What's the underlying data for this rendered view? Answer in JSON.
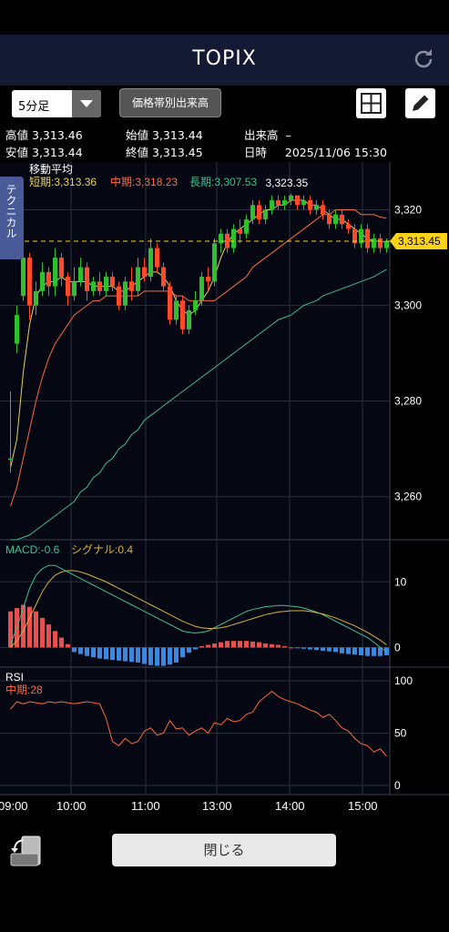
{
  "header": {
    "title": "TOPIX"
  },
  "toolbar": {
    "period": "5分足",
    "price_volume_button": "価格帯別出来高"
  },
  "quote": {
    "high_label": "高値",
    "high_value": "3,313.46",
    "open_label": "始値",
    "open_value": "3,313.44",
    "volume_label": "出来高",
    "volume_value": "–",
    "low_label": "安値",
    "low_value": "3,313.44",
    "close_label": "終値",
    "close_value": "3,313.45",
    "datetime_label": "日時",
    "datetime_value": "2025/11/06 15:30"
  },
  "side_tab": {
    "label": "テクニカル"
  },
  "bottom": {
    "close_button": "閉じる"
  },
  "colors": {
    "up": "#2fbf2f",
    "down": "#ff4a2a",
    "short_ma": "#e8d25a",
    "mid_ma": "#ff6a40",
    "long_ma": "#3fbf90",
    "current_price_bg": "#ffd21a",
    "macd_hist_pos": "#e85050",
    "macd_hist_neg": "#3a88e0"
  },
  "chart_data": [
    {
      "type": "line",
      "title": "移動平均",
      "ma_labels": {
        "short": "短期:3,313.36",
        "mid": "中期:3,318.23",
        "long": "長期:3,307.53"
      },
      "y_ticks": [
        "3,320",
        "3,300",
        "3,280",
        "3,260"
      ],
      "y_tick_values": [
        3320,
        3300,
        3280,
        3260
      ],
      "ylim": [
        3251,
        3330
      ],
      "x_ticks": [
        "09:00",
        "10:00",
        "11:00",
        "13:00",
        "14:00",
        "15:00"
      ],
      "current_price": "3,313.45",
      "current_price_value": 3313.45,
      "peak_label": "3,323.35",
      "peak_value": 3323.35,
      "candles": [
        [
          3268,
          3268,
          3282,
          3265
        ],
        [
          3292,
          3298,
          3300,
          3290
        ],
        [
          3302,
          3310,
          3311,
          3301
        ],
        [
          3310,
          3300,
          3311,
          3297
        ],
        [
          3300,
          3303,
          3305,
          3298
        ],
        [
          3303,
          3307,
          3309,
          3302
        ],
        [
          3307,
          3304,
          3308,
          3302
        ],
        [
          3304,
          3310,
          3312,
          3302
        ],
        [
          3310,
          3306,
          3311,
          3304
        ],
        [
          3306,
          3302,
          3307,
          3300
        ],
        [
          3302,
          3305,
          3308,
          3301
        ],
        [
          3305,
          3308,
          3310,
          3304
        ],
        [
          3308,
          3303,
          3309,
          3301
        ],
        [
          3303,
          3305,
          3306,
          3302
        ],
        [
          3305,
          3303,
          3307,
          3302
        ],
        [
          3303,
          3306,
          3307,
          3302
        ],
        [
          3306,
          3304,
          3307,
          3303
        ],
        [
          3304,
          3300,
          3305,
          3299
        ],
        [
          3300,
          3305,
          3306,
          3299
        ],
        [
          3305,
          3303,
          3308,
          3301
        ],
        [
          3303,
          3308,
          3310,
          3302
        ],
        [
          3308,
          3306,
          3310,
          3305
        ],
        [
          3306,
          3312,
          3314,
          3305
        ],
        [
          3312,
          3308,
          3313,
          3307
        ],
        [
          3308,
          3304,
          3309,
          3303
        ],
        [
          3304,
          3297,
          3305,
          3296
        ],
        [
          3297,
          3301,
          3302,
          3296
        ],
        [
          3301,
          3295,
          3302,
          3294
        ],
        [
          3295,
          3299,
          3300,
          3294
        ],
        [
          3299,
          3301,
          3303,
          3298
        ],
        [
          3301,
          3306,
          3307,
          3300
        ],
        [
          3306,
          3305,
          3308,
          3303
        ],
        [
          3305,
          3313,
          3314,
          3304
        ],
        [
          3313,
          3315,
          3316,
          3311
        ],
        [
          3315,
          3312,
          3316,
          3311
        ],
        [
          3312,
          3316,
          3317,
          3311
        ],
        [
          3316,
          3315,
          3318,
          3313
        ],
        [
          3315,
          3318,
          3319,
          3314
        ],
        [
          3318,
          3321,
          3322,
          3317
        ],
        [
          3321,
          3318,
          3322,
          3317
        ],
        [
          3318,
          3320,
          3321,
          3317
        ],
        [
          3320,
          3322,
          3323,
          3319
        ],
        [
          3322,
          3321,
          3323,
          3320
        ],
        [
          3321,
          3322,
          3323,
          3320
        ],
        [
          3322,
          3323,
          3323.35,
          3321
        ],
        [
          3323,
          3321,
          3323,
          3320
        ],
        [
          3321,
          3322,
          3323,
          3320
        ],
        [
          3322,
          3320,
          3323,
          3319
        ],
        [
          3320,
          3321,
          3322,
          3319
        ],
        [
          3321,
          3319,
          3322,
          3318
        ],
        [
          3319,
          3317,
          3320,
          3316
        ],
        [
          3317,
          3319,
          3320,
          3316
        ],
        [
          3319,
          3317,
          3320,
          3316
        ],
        [
          3317,
          3316,
          3318,
          3315
        ],
        [
          3316,
          3313,
          3317,
          3312
        ],
        [
          3313,
          3316,
          3317,
          3312
        ],
        [
          3316,
          3312,
          3317,
          3311
        ],
        [
          3312,
          3314,
          3315,
          3311
        ],
        [
          3314,
          3312,
          3315,
          3311
        ],
        [
          3312,
          3313.45,
          3314,
          3311
        ]
      ],
      "short_ma": [
        3266,
        3272,
        3286,
        3296,
        3302,
        3304,
        3305,
        3305,
        3306,
        3305,
        3305,
        3305,
        3305,
        3304,
        3304,
        3304,
        3304,
        3303,
        3303,
        3304,
        3305,
        3306,
        3307,
        3307,
        3306,
        3304,
        3301,
        3299,
        3298,
        3299,
        3301,
        3303,
        3306,
        3310,
        3313,
        3315,
        3316,
        3317,
        3318,
        3319,
        3320,
        3320,
        3321,
        3321,
        3322,
        3322,
        3322,
        3321,
        3321,
        3320,
        3319,
        3318,
        3318,
        3317,
        3316,
        3315,
        3314,
        3313.5,
        3313.4,
        3313.36
      ],
      "mid_ma": [
        3258,
        3262,
        3268,
        3274,
        3280,
        3285,
        3289,
        3292,
        3294,
        3296,
        3298,
        3299,
        3300,
        3301,
        3301,
        3302,
        3302,
        3302,
        3302,
        3302,
        3302,
        3303,
        3303,
        3303,
        3303,
        3303,
        3302,
        3302,
        3301,
        3301,
        3301,
        3301,
        3301,
        3302,
        3303,
        3304,
        3305,
        3306,
        3308,
        3309,
        3310,
        3311,
        3312,
        3313,
        3314,
        3315,
        3316,
        3317,
        3318,
        3319,
        3319,
        3320,
        3320,
        3320,
        3320,
        3319,
        3319,
        3319,
        3318.5,
        3318.23
      ],
      "long_ma": [
        3251,
        3251,
        3251.5,
        3252,
        3253,
        3254,
        3255,
        3256,
        3257,
        3258,
        3259,
        3261,
        3262,
        3264,
        3265,
        3267,
        3268,
        3270,
        3271,
        3273,
        3274,
        3276,
        3277,
        3278,
        3279,
        3280,
        3281,
        3282,
        3283,
        3284,
        3285,
        3286,
        3287,
        3288,
        3289,
        3290,
        3291,
        3292,
        3293,
        3294,
        3295,
        3296,
        3297,
        3297.5,
        3298,
        3299,
        3300,
        3300.5,
        3301,
        3302,
        3302.5,
        3303,
        3303.5,
        3304,
        3304.5,
        3305,
        3305.5,
        3306,
        3306.8,
        3307.53
      ]
    },
    {
      "type": "line",
      "title": "MACD",
      "macd_label": "MACD:-0.6",
      "signal_label": "シグナル:0.4",
      "y_ticks": [
        "10",
        "0"
      ],
      "y_tick_values": [
        10,
        0
      ],
      "ylim": [
        -3,
        16
      ],
      "macd": [
        0.5,
        3,
        6,
        9,
        11,
        12,
        12.5,
        12.5,
        12,
        11.5,
        11,
        10.5,
        10,
        9.5,
        9,
        8.5,
        8,
        7.5,
        7,
        6.5,
        6,
        5.5,
        5,
        4.5,
        4,
        3.5,
        3,
        2.5,
        2.3,
        2.2,
        2.3,
        2.5,
        3,
        3.5,
        4,
        4.5,
        5,
        5.5,
        5.8,
        6,
        6.2,
        6.3,
        6.4,
        6.4,
        6.3,
        6.2,
        6,
        5.7,
        5.4,
        5,
        4.5,
        4,
        3.5,
        3,
        2.5,
        2,
        1.5,
        0.8,
        0,
        -0.6
      ],
      "signal": [
        0,
        1,
        2.5,
        4.5,
        6.5,
        8.5,
        10,
        11,
        11.5,
        11.7,
        11.7,
        11.5,
        11.2,
        10.8,
        10.4,
        10,
        9.5,
        9,
        8.5,
        8,
        7.5,
        7,
        6.5,
        6,
        5.5,
        5,
        4.5,
        4,
        3.6,
        3.2,
        3,
        2.9,
        2.9,
        3,
        3.2,
        3.5,
        3.8,
        4.1,
        4.4,
        4.7,
        5,
        5.2,
        5.4,
        5.5,
        5.6,
        5.6,
        5.6,
        5.5,
        5.3,
        5.1,
        4.8,
        4.5,
        4.1,
        3.7,
        3.3,
        2.8,
        2.3,
        1.7,
        1.1,
        0.4
      ],
      "histogram": [
        5.5,
        6,
        6.5,
        6.2,
        5.5,
        4.5,
        3.5,
        2.5,
        1.5,
        0.5,
        -0.7,
        -1,
        -1.3,
        -1.5,
        -1.7,
        -1.8,
        -1.9,
        -2,
        -2.1,
        -2.2,
        -2.3,
        -2.5,
        -2.7,
        -2.8,
        -2.8,
        -2.6,
        -2.3,
        -1.5,
        -0.8,
        -0.3,
        0.2,
        0.4,
        0.6,
        0.8,
        1,
        1,
        1,
        1,
        0.9,
        0.8,
        0.6,
        0.5,
        0.4,
        0.2,
        0,
        -0.1,
        -0.2,
        -0.3,
        -0.4,
        -0.5,
        -0.6,
        -0.7,
        -0.9,
        -1,
        -1.1,
        -1.2,
        -1.3,
        -1.3,
        -1.3,
        -1.2
      ]
    },
    {
      "type": "line",
      "title": "RSI",
      "rsi_label": "中期:28",
      "y_ticks": [
        "100",
        "50",
        "0"
      ],
      "y_tick_values": [
        100,
        50,
        0
      ],
      "ylim": [
        0,
        100
      ],
      "rsi": [
        73,
        80,
        78,
        80,
        79,
        78,
        80,
        79,
        80,
        79,
        78,
        79,
        80,
        79,
        78,
        64,
        42,
        38,
        45,
        40,
        42,
        52,
        55,
        48,
        50,
        62,
        54,
        55,
        48,
        52,
        55,
        50,
        60,
        58,
        64,
        61,
        62,
        68,
        70,
        80,
        85,
        90,
        85,
        82,
        80,
        78,
        75,
        72,
        70,
        65,
        68,
        62,
        55,
        52,
        45,
        40,
        38,
        32,
        35,
        28
      ]
    }
  ]
}
